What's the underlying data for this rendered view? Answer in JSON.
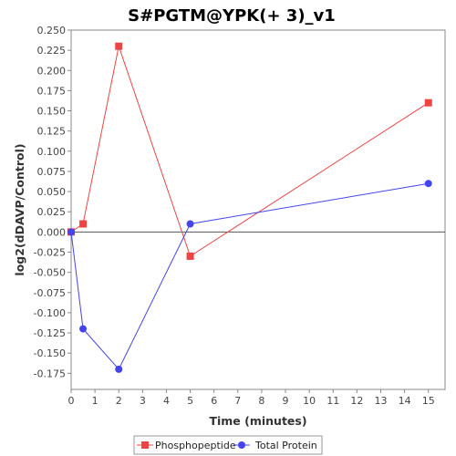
{
  "chart_data": {
    "type": "line",
    "title": "S#PGTM@YPK(+ 3)_v1",
    "xlabel": "Time (minutes)",
    "ylabel": "log2(dDAVP/Control)",
    "xlim": [
      0,
      15.7
    ],
    "ylim": [
      -0.195,
      0.25
    ],
    "x_ticks": [
      0,
      1,
      2,
      3,
      4,
      5,
      6,
      7,
      8,
      9,
      10,
      11,
      12,
      13,
      14,
      15
    ],
    "y_ticks": [
      0.25,
      0.225,
      0.2,
      0.175,
      0.15,
      0.125,
      0.1,
      0.075,
      0.05,
      0.025,
      0.0,
      -0.025,
      -0.05,
      -0.075,
      -0.1,
      -0.125,
      -0.15,
      -0.175
    ],
    "zero_line": true,
    "grid": false,
    "legend_position": "bottom",
    "series": [
      {
        "name": "Phosphopeptide",
        "color": "#ee4444",
        "marker": "square",
        "x": [
          0,
          0.5,
          2,
          5,
          15
        ],
        "y": [
          0.0,
          0.01,
          0.23,
          -0.03,
          0.16
        ]
      },
      {
        "name": "Total Protein",
        "color": "#4444ee",
        "marker": "circle",
        "x": [
          0,
          0.5,
          2,
          5,
          15
        ],
        "y": [
          0.0,
          -0.12,
          -0.17,
          0.01,
          0.06
        ]
      }
    ]
  }
}
